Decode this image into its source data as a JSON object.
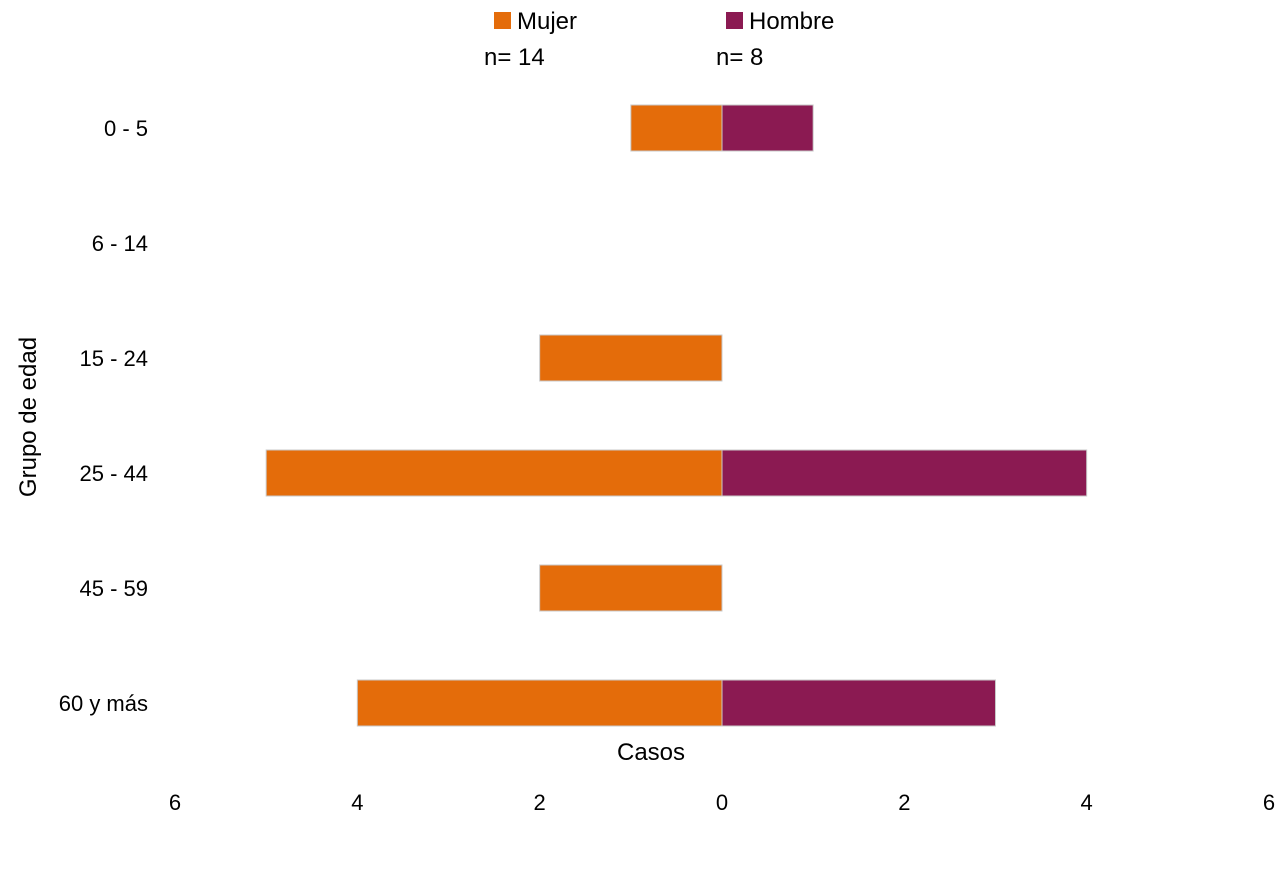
{
  "chart_data": {
    "type": "bar",
    "orientation": "horizontal",
    "layout": "population-pyramid",
    "categories": [
      "0 - 5",
      "6 - 14",
      "15 - 24",
      "25 - 44",
      "45 - 59",
      "60 y más"
    ],
    "series": [
      {
        "name": "Mujer",
        "n_label": "n= 14",
        "color": "#E46C0A",
        "side": "left",
        "values": [
          1,
          0,
          2,
          5,
          2,
          4
        ]
      },
      {
        "name": "Hombre",
        "n_label": "n= 8",
        "color": "#8B1A52",
        "side": "right",
        "values": [
          1,
          0,
          0,
          4,
          0,
          3
        ]
      }
    ],
    "xlabel": "Casos",
    "ylabel": "Grupo de edad",
    "xlim": [
      -6,
      6
    ],
    "x_ticks": [
      -6,
      -4,
      -2,
      0,
      2,
      4,
      6
    ],
    "x_tick_labels": [
      "6",
      "4",
      "2",
      "0",
      "2",
      "4",
      "6"
    ],
    "grid": false,
    "legend_position": "top-center"
  }
}
